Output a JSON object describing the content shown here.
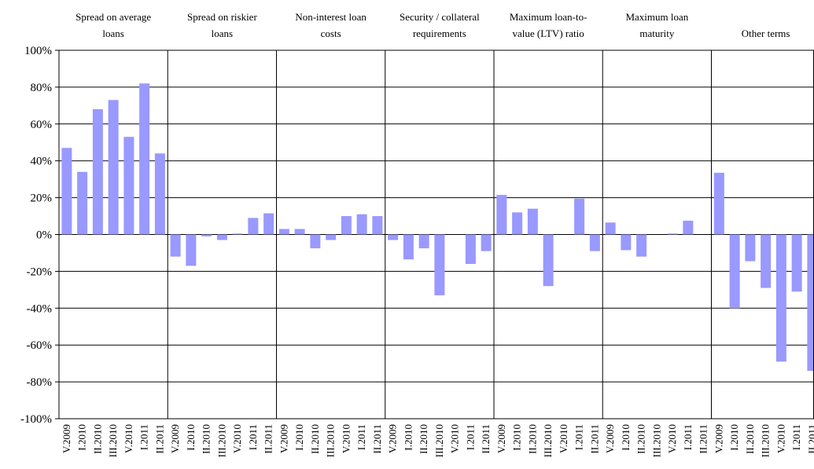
{
  "chart_data": {
    "type": "bar",
    "panels": [
      {
        "title": "Spread on average loans",
        "title_lines": [
          "Spread on average",
          "loans"
        ]
      },
      {
        "title": "Spread on riskier loans",
        "title_lines": [
          "Spread on riskier",
          "loans"
        ]
      },
      {
        "title": "Non-interest loan costs",
        "title_lines": [
          "Non-interest loan",
          "costs"
        ]
      },
      {
        "title": "Security / collateral requirements",
        "title_lines": [
          "Security / collateral",
          "requirements"
        ]
      },
      {
        "title": "Maximum loan-to-value (LTV) ratio",
        "title_lines": [
          "Maximum loan-to-",
          "value (LTV) ratio"
        ]
      },
      {
        "title": "Maximum loan maturity",
        "title_lines": [
          "Maximum loan",
          "maturity"
        ]
      },
      {
        "title": "Other terms",
        "title_lines": [
          "Other terms"
        ]
      }
    ],
    "categories": [
      "V.2009",
      "I.2010",
      "II.2010",
      "III.2010",
      "V.2010",
      "I.2011",
      "II.2011"
    ],
    "series": [
      {
        "values": [
          [
            47,
            34,
            68,
            73,
            53,
            82,
            44
          ],
          [
            -12,
            -17,
            -1,
            -3,
            0.5,
            9,
            11.5
          ],
          [
            3,
            3,
            -7.5,
            -3,
            10,
            11,
            10
          ],
          [
            -3,
            -13.5,
            -7.5,
            -33,
            0,
            -16,
            -9
          ],
          [
            21.5,
            12,
            14,
            -28,
            0,
            19.5,
            -9
          ],
          [
            6.5,
            -8.5,
            -12,
            0,
            0.5,
            7.5,
            0
          ],
          [
            33.5,
            -40,
            -14.5,
            -29,
            -69,
            -31,
            -74
          ]
        ]
      }
    ],
    "ylim": [
      -100,
      100
    ],
    "y_ticks": [
      "100%",
      "80%",
      "60%",
      "40%",
      "20%",
      "0%",
      "-20%",
      "-40%",
      "-60%",
      "-80%",
      "-100%"
    ],
    "grid": true,
    "bar_color": "#9999ff"
  }
}
